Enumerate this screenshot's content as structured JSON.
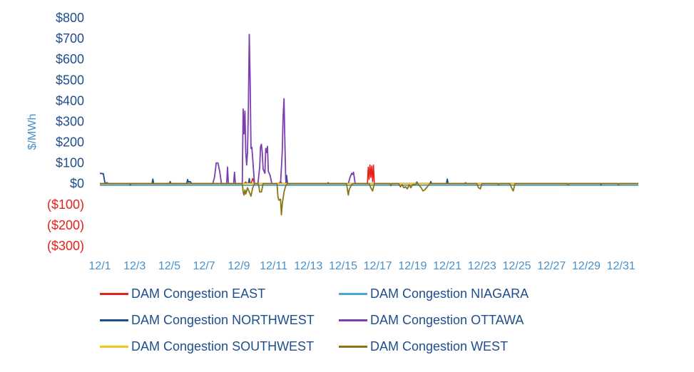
{
  "chart_data": {
    "type": "line",
    "title": "",
    "xlabel": "",
    "ylabel": "$/MWh",
    "ylim": [
      -300,
      800
    ],
    "yticks": [
      {
        "value": 800,
        "label": "$800",
        "color": "#1f4e8c"
      },
      {
        "value": 700,
        "label": "$700",
        "color": "#1f4e8c"
      },
      {
        "value": 600,
        "label": "$600",
        "color": "#1f4e8c"
      },
      {
        "value": 500,
        "label": "$500",
        "color": "#1f4e8c"
      },
      {
        "value": 400,
        "label": "$400",
        "color": "#1f4e8c"
      },
      {
        "value": 300,
        "label": "$300",
        "color": "#1f4e8c"
      },
      {
        "value": 200,
        "label": "$200",
        "color": "#1f4e8c"
      },
      {
        "value": 100,
        "label": "$100",
        "color": "#1f4e8c"
      },
      {
        "value": 0,
        "label": "$0",
        "color": "#1f4e8c"
      },
      {
        "value": -100,
        "label": "($100)",
        "color": "#e8201a"
      },
      {
        "value": -200,
        "label": "($200)",
        "color": "#e8201a"
      },
      {
        "value": -300,
        "label": "($300)",
        "color": "#e8201a"
      }
    ],
    "xlim": [
      1,
      32
    ],
    "xticks": [
      {
        "value": 1,
        "label": "12/1"
      },
      {
        "value": 3,
        "label": "12/3"
      },
      {
        "value": 5,
        "label": "12/5"
      },
      {
        "value": 7,
        "label": "12/7"
      },
      {
        "value": 9,
        "label": "12/9"
      },
      {
        "value": 11,
        "label": "12/11"
      },
      {
        "value": 13,
        "label": "12/13"
      },
      {
        "value": 15,
        "label": "12/15"
      },
      {
        "value": 17,
        "label": "12/17"
      },
      {
        "value": 19,
        "label": "12/19"
      },
      {
        "value": 21,
        "label": "12/21"
      },
      {
        "value": 23,
        "label": "12/23"
      },
      {
        "value": 25,
        "label": "12/25"
      },
      {
        "value": 27,
        "label": "12/27"
      },
      {
        "value": 29,
        "label": "12/29"
      },
      {
        "value": 31,
        "label": "12/31"
      }
    ],
    "grid": false,
    "legend_position": "bottom",
    "series": [
      {
        "name": "DAM Congestion NIAGARA",
        "color": "#4aa8d8",
        "points": [
          [
            1,
            -8
          ],
          [
            32,
            -8
          ]
        ]
      },
      {
        "name": "DAM Congestion EAST",
        "color": "#e8201a",
        "points": [
          [
            1,
            0
          ],
          [
            9.3,
            0
          ],
          [
            9.4,
            8
          ],
          [
            9.5,
            0
          ],
          [
            9.7,
            0
          ],
          [
            9.8,
            25
          ],
          [
            9.9,
            0
          ],
          [
            11.3,
            0
          ],
          [
            11.4,
            10
          ],
          [
            11.5,
            0
          ],
          [
            16.4,
            0
          ],
          [
            16.45,
            80
          ],
          [
            16.5,
            20
          ],
          [
            16.55,
            90
          ],
          [
            16.6,
            30
          ],
          [
            16.65,
            85
          ],
          [
            16.7,
            10
          ],
          [
            16.75,
            90
          ],
          [
            16.8,
            0
          ],
          [
            32,
            0
          ]
        ]
      },
      {
        "name": "DAM Congestion NORTHWEST",
        "color": "#1f4e8c",
        "points": [
          [
            1,
            50
          ],
          [
            1.2,
            48
          ],
          [
            1.3,
            0
          ],
          [
            1.4,
            5
          ],
          [
            1.5,
            0
          ],
          [
            2.7,
            0
          ],
          [
            2.75,
            -5
          ],
          [
            2.8,
            0
          ],
          [
            4.0,
            0
          ],
          [
            4.05,
            22
          ],
          [
            4.1,
            0
          ],
          [
            5.0,
            0
          ],
          [
            5.05,
            10
          ],
          [
            5.1,
            0
          ],
          [
            6.0,
            0
          ],
          [
            6.05,
            20
          ],
          [
            6.1,
            8
          ],
          [
            6.2,
            10
          ],
          [
            6.3,
            0
          ],
          [
            9.55,
            0
          ],
          [
            9.6,
            25
          ],
          [
            9.65,
            0
          ],
          [
            11.7,
            0
          ],
          [
            11.75,
            40
          ],
          [
            11.8,
            0
          ],
          [
            14.1,
            0
          ],
          [
            14.15,
            5
          ],
          [
            14.2,
            0
          ],
          [
            19.2,
            0
          ],
          [
            19.25,
            8
          ],
          [
            19.3,
            0
          ],
          [
            20.0,
            0
          ],
          [
            20.05,
            10
          ],
          [
            20.1,
            0
          ],
          [
            20.95,
            0
          ],
          [
            21.0,
            22
          ],
          [
            21.05,
            0
          ],
          [
            22.0,
            0
          ],
          [
            22.05,
            5
          ],
          [
            22.1,
            0
          ],
          [
            29.8,
            0
          ],
          [
            29.85,
            -5
          ],
          [
            29.9,
            0
          ],
          [
            32,
            0
          ]
        ]
      },
      {
        "name": "DAM Congestion OTTAWA",
        "color": "#7b3fb0",
        "points": [
          [
            1,
            0
          ],
          [
            7.5,
            0
          ],
          [
            7.6,
            30
          ],
          [
            7.7,
            100
          ],
          [
            7.8,
            100
          ],
          [
            7.9,
            60
          ],
          [
            8.0,
            0
          ],
          [
            8.3,
            0
          ],
          [
            8.35,
            80
          ],
          [
            8.4,
            0
          ],
          [
            8.7,
            0
          ],
          [
            8.75,
            55
          ],
          [
            8.8,
            0
          ],
          [
            9.2,
            0
          ],
          [
            9.25,
            360
          ],
          [
            9.3,
            240
          ],
          [
            9.35,
            350
          ],
          [
            9.4,
            150
          ],
          [
            9.45,
            90
          ],
          [
            9.5,
            150
          ],
          [
            9.55,
            360
          ],
          [
            9.6,
            720
          ],
          [
            9.65,
            500
          ],
          [
            9.7,
            170
          ],
          [
            9.75,
            175
          ],
          [
            9.8,
            120
          ],
          [
            9.9,
            0
          ],
          [
            10.1,
            0
          ],
          [
            10.2,
            80
          ],
          [
            10.25,
            180
          ],
          [
            10.3,
            190
          ],
          [
            10.35,
            150
          ],
          [
            10.4,
            70
          ],
          [
            10.45,
            60
          ],
          [
            10.5,
            50
          ],
          [
            10.55,
            170
          ],
          [
            10.6,
            150
          ],
          [
            10.65,
            180
          ],
          [
            10.7,
            60
          ],
          [
            10.8,
            40
          ],
          [
            10.9,
            0
          ],
          [
            11.4,
            0
          ],
          [
            11.5,
            150
          ],
          [
            11.55,
            320
          ],
          [
            11.6,
            410
          ],
          [
            11.65,
            200
          ],
          [
            11.7,
            20
          ],
          [
            11.75,
            0
          ],
          [
            15.3,
            0
          ],
          [
            15.4,
            30
          ],
          [
            15.5,
            50
          ],
          [
            15.55,
            45
          ],
          [
            15.6,
            55
          ],
          [
            15.7,
            0
          ],
          [
            32,
            0
          ]
        ]
      },
      {
        "name": "DAM Congestion SOUTHWEST",
        "color": "#f5c518",
        "points": [
          [
            1,
            0
          ],
          [
            32,
            0
          ]
        ]
      },
      {
        "name": "DAM Congestion WEST",
        "color": "#8b7415",
        "points": [
          [
            1,
            0
          ],
          [
            9.2,
            0
          ],
          [
            9.25,
            -40
          ],
          [
            9.3,
            -55
          ],
          [
            9.35,
            -30
          ],
          [
            9.4,
            -50
          ],
          [
            9.5,
            -20
          ],
          [
            9.6,
            -40
          ],
          [
            9.7,
            -60
          ],
          [
            9.8,
            -20
          ],
          [
            9.9,
            0
          ],
          [
            10.1,
            0
          ],
          [
            10.15,
            -10
          ],
          [
            10.2,
            -40
          ],
          [
            10.3,
            -40
          ],
          [
            10.4,
            0
          ],
          [
            11.2,
            0
          ],
          [
            11.25,
            -60
          ],
          [
            11.3,
            -80
          ],
          [
            11.4,
            -75
          ],
          [
            11.45,
            -150
          ],
          [
            11.5,
            -100
          ],
          [
            11.6,
            -40
          ],
          [
            11.7,
            -10
          ],
          [
            11.8,
            0
          ],
          [
            15.2,
            0
          ],
          [
            15.3,
            -55
          ],
          [
            15.35,
            -30
          ],
          [
            15.4,
            -20
          ],
          [
            15.5,
            -5
          ],
          [
            15.6,
            0
          ],
          [
            16.5,
            0
          ],
          [
            16.6,
            -20
          ],
          [
            16.7,
            -35
          ],
          [
            16.8,
            0
          ],
          [
            17.7,
            0
          ],
          [
            17.75,
            -10
          ],
          [
            17.8,
            0
          ],
          [
            18.2,
            0
          ],
          [
            18.3,
            -15
          ],
          [
            18.4,
            -5
          ],
          [
            18.5,
            -20
          ],
          [
            18.6,
            -15
          ],
          [
            18.7,
            -25
          ],
          [
            18.8,
            -5
          ],
          [
            18.9,
            -20
          ],
          [
            19.0,
            -5
          ],
          [
            19.3,
            0
          ],
          [
            19.4,
            -10
          ],
          [
            19.5,
            -20
          ],
          [
            19.6,
            -35
          ],
          [
            19.7,
            -30
          ],
          [
            19.8,
            -20
          ],
          [
            19.9,
            -10
          ],
          [
            20.0,
            0
          ],
          [
            22.7,
            0
          ],
          [
            22.8,
            -20
          ],
          [
            22.9,
            -25
          ],
          [
            23.0,
            0
          ],
          [
            23.9,
            0
          ],
          [
            23.95,
            -5
          ],
          [
            24.0,
            0
          ],
          [
            24.6,
            0
          ],
          [
            24.7,
            -20
          ],
          [
            24.8,
            -35
          ],
          [
            24.9,
            0
          ],
          [
            27.9,
            0
          ],
          [
            27.95,
            -5
          ],
          [
            28.0,
            0
          ],
          [
            30.8,
            0
          ],
          [
            30.85,
            -5
          ],
          [
            30.9,
            0
          ],
          [
            32,
            0
          ]
        ]
      }
    ]
  },
  "legend": {
    "items": [
      {
        "label": "DAM Congestion EAST",
        "color": "#e8201a"
      },
      {
        "label": "DAM Congestion NIAGARA",
        "color": "#4aa8d8"
      },
      {
        "label": "DAM Congestion NORTHWEST",
        "color": "#1f4e8c"
      },
      {
        "label": "DAM Congestion OTTAWA",
        "color": "#7b3fb0"
      },
      {
        "label": "DAM Congestion SOUTHWEST",
        "color": "#f5c518"
      },
      {
        "label": "DAM Congestion WEST",
        "color": "#8b7415"
      }
    ]
  }
}
